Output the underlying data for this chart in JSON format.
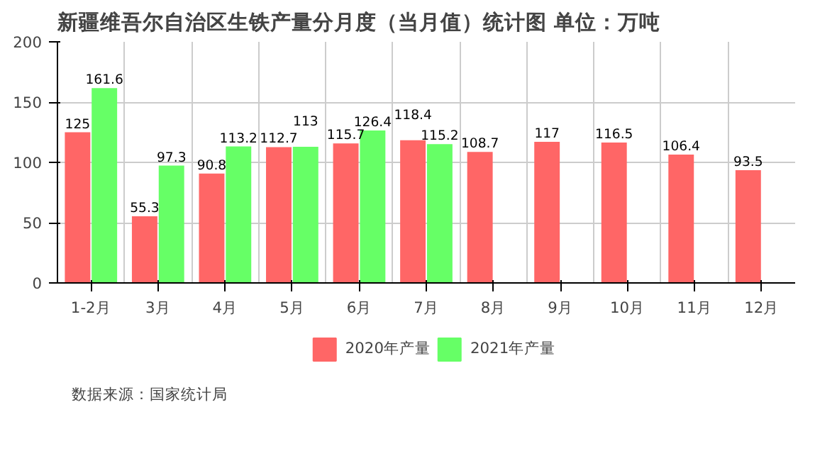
{
  "chart_data": {
    "type": "bar",
    "title": "新疆维吾尔自治区生铁产量分月度（当月值）统计图 单位：万吨",
    "categories": [
      "1-2月",
      "3月",
      "4月",
      "5月",
      "6月",
      "7月",
      "8月",
      "9月",
      "10月",
      "11月",
      "12月"
    ],
    "series": [
      {
        "name": "2020年产量",
        "color": "#ff6666",
        "values": [
          125,
          55.3,
          90.8,
          112.7,
          115.7,
          118.4,
          108.7,
          117,
          116.5,
          106.4,
          93.5
        ]
      },
      {
        "name": "2021年产量",
        "color": "#66ff66",
        "values": [
          161.6,
          97.3,
          113.2,
          113,
          126.4,
          115.2,
          null,
          null,
          null,
          null,
          null
        ]
      }
    ],
    "ylim": [
      0,
      200
    ],
    "yticks": [
      0,
      50,
      100,
      150,
      200
    ],
    "grid": true,
    "legend": "bottom",
    "data_labels": true,
    "annotations": [
      "数据来源：国家统计局"
    ]
  }
}
